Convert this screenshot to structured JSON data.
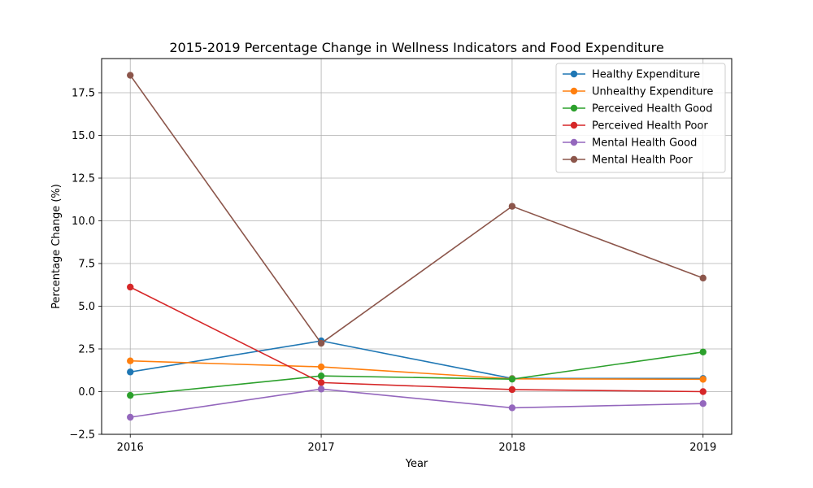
{
  "chart_data": {
    "type": "line",
    "title": "2015-2019 Percentage Change in Wellness Indicators and Food Expenditure",
    "xlabel": "Year",
    "ylabel": "Percentage Change (%)",
    "x": [
      "2016",
      "2017",
      "2018",
      "2019"
    ],
    "xlim": [
      2015.85,
      2019.15
    ],
    "ylim": [
      -2.5,
      19.5
    ],
    "yticks": [
      -2.5,
      0.0,
      2.5,
      5.0,
      7.5,
      10.0,
      12.5,
      15.0,
      17.5
    ],
    "ytick_labels": [
      "−2.5",
      "0.0",
      "2.5",
      "5.0",
      "7.5",
      "10.0",
      "12.5",
      "15.0",
      "17.5"
    ],
    "grid": true,
    "legend_position": "top-right",
    "series": [
      {
        "name": "Healthy Expenditure",
        "color": "#1f77b4",
        "values": [
          1.15,
          2.97,
          0.77,
          0.77
        ]
      },
      {
        "name": "Unhealthy Expenditure",
        "color": "#ff7f0e",
        "values": [
          1.8,
          1.45,
          0.75,
          0.72
        ]
      },
      {
        "name": "Perceived Health Good",
        "color": "#2ca02c",
        "values": [
          -0.22,
          0.92,
          0.73,
          2.32
        ]
      },
      {
        "name": "Perceived Health Poor",
        "color": "#d62728",
        "values": [
          6.12,
          0.53,
          0.12,
          0.0
        ]
      },
      {
        "name": "Mental Health Good",
        "color": "#9467bd",
        "values": [
          -1.5,
          0.15,
          -0.95,
          -0.7
        ]
      },
      {
        "name": "Mental Health Poor",
        "color": "#8c564b",
        "values": [
          18.52,
          2.83,
          10.85,
          6.65
        ]
      }
    ]
  }
}
